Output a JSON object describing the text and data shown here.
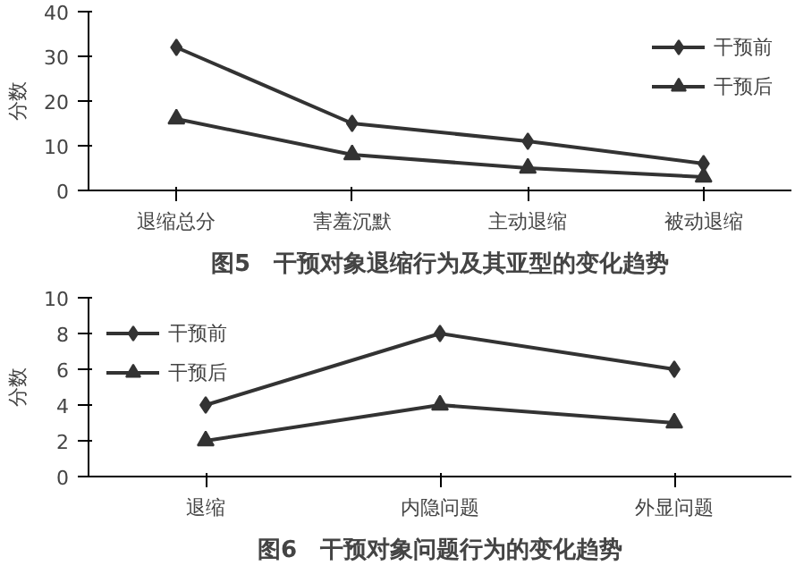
{
  "chart_data": [
    {
      "type": "line",
      "title": "图5　干预对象退缩行为及其亚型的变化趋势",
      "ylabel": "分数",
      "categories": [
        "退缩总分",
        "害羞沉默",
        "主动退缩",
        "被动退缩"
      ],
      "series": [
        {
          "name": "干预前",
          "color": "#333333",
          "values": [
            32,
            15,
            11,
            6
          ],
          "marker": "diamond"
        },
        {
          "name": "干预后",
          "color": "#333333",
          "values": [
            16,
            8,
            5,
            3
          ],
          "marker": "triangle"
        }
      ],
      "ylim": [
        0,
        40
      ],
      "yticks": [
        0,
        10,
        20,
        30,
        40
      ],
      "grid": false,
      "legend": "top right",
      "line_style": "solid"
    },
    {
      "type": "line",
      "title": "图6　干预对象问题行为的变化趋势",
      "ylabel": "分数",
      "categories": [
        "退缩",
        "内隐问题",
        "外显问题"
      ],
      "series": [
        {
          "name": "干预前",
          "color": "#333333",
          "values": [
            4,
            8,
            6
          ],
          "marker": "diamond"
        },
        {
          "name": "干预后",
          "color": "#333333",
          "values": [
            2,
            4,
            3
          ],
          "marker": "triangle"
        }
      ],
      "ylim": [
        0,
        10
      ],
      "yticks": [
        0,
        2,
        4,
        6,
        8,
        10
      ],
      "grid": false,
      "legend": "top left",
      "line_style": "solid"
    }
  ]
}
